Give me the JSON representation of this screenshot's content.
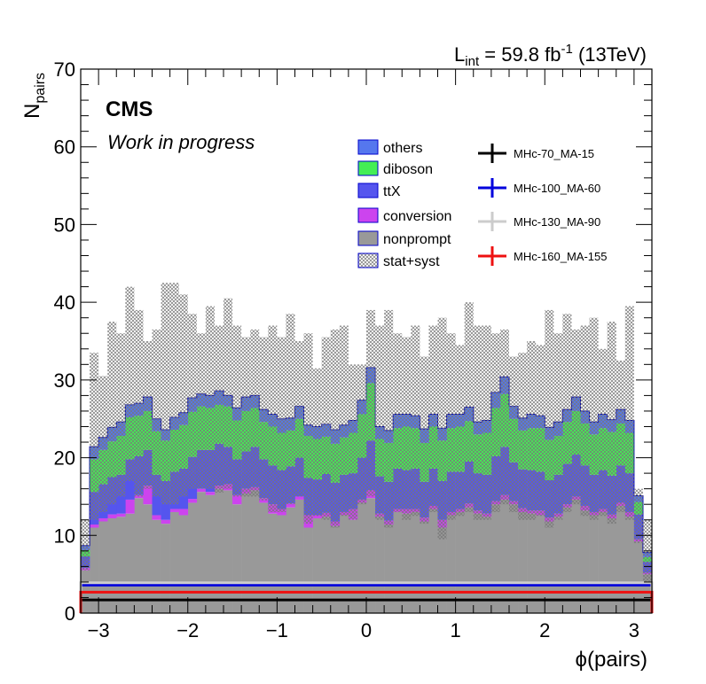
{
  "chart_data": {
    "type": "bar",
    "stacked": true,
    "annotations": {
      "experiment": "CMS",
      "status": "Work in progress",
      "lumi_prefix": "L",
      "lumi_sub": "int",
      "lumi_value": " = 59.8 fb",
      "lumi_sup": "-1",
      "energy": " (13TeV)"
    },
    "xlabel": "ϕ(pairs)",
    "ylabel_main": "N",
    "ylabel_sub": "pairs",
    "xlim": [
      -3.2,
      3.2
    ],
    "ylim": [
      0,
      70
    ],
    "x_ticks": [
      -3,
      -2,
      -1,
      0,
      1,
      2,
      3
    ],
    "x_tick_labels": [
      "−3",
      "−2",
      "−1",
      "0",
      "1",
      "2",
      "3"
    ],
    "y_ticks": [
      0,
      10,
      20,
      30,
      40,
      50,
      60,
      70
    ],
    "y_tick_labels": [
      "0",
      "10",
      "20",
      "30",
      "40",
      "50",
      "60",
      "70"
    ],
    "bin_edges_start": -3.2,
    "bin_width": 0.1,
    "n_bins": 64,
    "legend_position": "top-right",
    "series": [
      {
        "name": "nonprompt",
        "color": "#999999",
        "values": [
          5.5,
          11.0,
          11.8,
          12.2,
          12.4,
          12.8,
          14.8,
          14.0,
          12.0,
          11.5,
          13.0,
          12.6,
          14.2,
          15.6,
          15.2,
          16.0,
          15.8,
          14.0,
          15.4,
          15.8,
          14.2,
          12.8,
          12.6,
          13.6,
          14.6,
          11.0,
          12.2,
          12.4,
          11.2,
          12.6,
          12.0,
          14.2,
          14.8,
          12.4,
          11.4,
          13.0,
          12.8,
          13.0,
          11.8,
          13.4,
          11.0,
          12.6,
          13.0,
          13.6,
          12.8,
          12.4,
          14.0,
          14.6,
          14.0,
          13.0,
          12.8,
          12.6,
          11.8,
          12.4,
          13.6,
          14.6,
          13.2,
          12.6,
          13.0,
          12.2,
          13.8,
          12.4,
          9.2,
          5.0
        ]
      },
      {
        "name": "conversion",
        "color": "#cc44ee",
        "values": [
          0.3,
          0.4,
          0.4,
          0.5,
          0.4,
          1.8,
          0.4,
          2.4,
          0.6,
          0.5,
          0.4,
          0.8,
          0.5,
          0.4,
          0.4,
          0.4,
          0.8,
          1.2,
          0.6,
          0.4,
          0.6,
          1.2,
          0.8,
          0.5,
          0.4,
          1.6,
          0.4,
          0.5,
          0.6,
          0.4,
          1.4,
          0.4,
          1.0,
          0.4,
          0.5,
          0.4,
          0.6,
          0.4,
          0.5,
          0.4,
          1.0,
          0.4,
          0.4,
          0.5,
          0.4,
          0.4,
          0.4,
          0.6,
          0.4,
          0.5,
          0.4,
          0.6,
          0.5,
          0.4,
          0.4,
          0.4,
          0.6,
          0.4,
          0.4,
          0.5,
          0.4,
          0.6,
          0.3,
          0.2
        ]
      },
      {
        "name": "ttX",
        "color": "#5555ee",
        "values": [
          1.5,
          4.2,
          4.4,
          4.8,
          5.0,
          5.2,
          5.0,
          4.6,
          5.2,
          5.0,
          4.8,
          5.2,
          5.4,
          5.0,
          5.4,
          5.4,
          4.8,
          4.6,
          4.8,
          5.2,
          5.0,
          5.0,
          5.0,
          4.8,
          5.0,
          4.8,
          4.6,
          5.0,
          5.0,
          4.8,
          4.6,
          5.4,
          6.4,
          4.8,
          5.0,
          5.2,
          5.0,
          5.2,
          4.6,
          4.8,
          5.0,
          5.2,
          4.8,
          5.4,
          4.8,
          5.0,
          5.8,
          6.2,
          5.0,
          5.0,
          5.2,
          5.0,
          4.8,
          5.0,
          5.2,
          5.4,
          5.2,
          4.8,
          5.0,
          5.0,
          4.8,
          5.0,
          3.2,
          1.4
        ]
      },
      {
        "name": "diboson",
        "color": "#44ee55",
        "values": [
          0.8,
          4.2,
          4.4,
          4.6,
          5.0,
          5.4,
          5.2,
          5.0,
          5.6,
          5.2,
          5.4,
          5.6,
          5.8,
          5.6,
          5.4,
          5.0,
          5.2,
          5.0,
          5.2,
          5.0,
          4.8,
          5.0,
          4.8,
          4.6,
          5.0,
          5.4,
          5.2,
          4.8,
          5.0,
          4.8,
          5.2,
          5.6,
          7.4,
          4.8,
          5.0,
          5.2,
          5.6,
          5.2,
          5.0,
          5.4,
          5.2,
          5.6,
          5.8,
          5.2,
          5.0,
          5.4,
          6.2,
          6.8,
          5.6,
          5.0,
          5.4,
          5.6,
          5.2,
          5.0,
          5.4,
          5.6,
          5.4,
          5.2,
          5.4,
          5.6,
          5.4,
          5.2,
          1.6,
          0.6
        ]
      },
      {
        "name": "others",
        "color": "#5577ee",
        "values": [
          0.6,
          1.6,
          1.6,
          1.8,
          1.8,
          1.6,
          1.6,
          1.8,
          1.6,
          1.4,
          1.6,
          1.6,
          1.8,
          1.6,
          1.6,
          1.8,
          1.4,
          1.6,
          1.8,
          1.6,
          1.6,
          1.6,
          1.8,
          1.6,
          1.6,
          1.4,
          1.6,
          1.6,
          1.8,
          1.6,
          1.6,
          1.8,
          2.0,
          1.6,
          1.6,
          1.8,
          1.6,
          1.6,
          1.8,
          1.6,
          1.6,
          1.8,
          1.6,
          1.8,
          1.6,
          1.6,
          2.0,
          2.2,
          1.6,
          1.6,
          1.8,
          1.6,
          1.6,
          1.8,
          1.6,
          1.8,
          1.6,
          1.6,
          1.8,
          1.6,
          1.8,
          1.6,
          0.8,
          0.6
        ]
      }
    ],
    "uncertainty_band": {
      "name": "stat+syst",
      "fill_pattern": "crosshatch",
      "low": [
        5.5,
        12.0,
        13.0,
        14.0,
        15.0,
        17.0,
        15.0,
        16.0,
        15.0,
        14.0,
        14.0,
        15.0,
        16.0,
        16.0,
        16.0,
        15.5,
        16.0,
        15.0,
        15.0,
        15.0,
        14.5,
        13.0,
        13.0,
        14.0,
        15.0,
        11.5,
        12.5,
        12.0,
        11.0,
        12.5,
        12.0,
        14.0,
        15.0,
        12.0,
        11.0,
        13.0,
        12.0,
        12.5,
        11.5,
        13.0,
        9.5,
        12.0,
        12.5,
        13.0,
        12.0,
        12.0,
        13.0,
        14.0,
        13.0,
        12.0,
        12.0,
        12.5,
        11.0,
        12.0,
        13.0,
        14.0,
        12.5,
        12.0,
        12.5,
        11.5,
        13.0,
        12.0,
        9.0,
        4.0
      ],
      "high": [
        12.0,
        33.5,
        30.5,
        37.5,
        36.0,
        42.0,
        39.0,
        35.0,
        36.5,
        42.5,
        42.5,
        41.0,
        38.5,
        36.0,
        39.5,
        37.0,
        40.5,
        37.0,
        35.5,
        36.5,
        35.5,
        37.0,
        35.5,
        38.5,
        35.0,
        36.0,
        31.5,
        35.5,
        36.5,
        37.0,
        32.0,
        32.0,
        39.0,
        37.0,
        39.0,
        36.0,
        35.5,
        37.0,
        33.0,
        37.0,
        38.0,
        36.0,
        34.5,
        40.0,
        37.0,
        37.0,
        36.0,
        36.5,
        33.0,
        33.5,
        35.0,
        34.5,
        39.0,
        36.0,
        38.5,
        36.5,
        37.0,
        38.0,
        34.0,
        37.5,
        32.5,
        39.5,
        16.0,
        12.0
      ]
    },
    "signals": [
      {
        "name": "MHc-70_MA-15",
        "color": "#000000",
        "level": 1.7
      },
      {
        "name": "MHc-100_MA-60",
        "color": "#0000dd",
        "level": 3.6
      },
      {
        "name": "MHc-130_MA-90",
        "color": "#cccccc",
        "level": 3.9
      },
      {
        "name": "MHc-160_MA-155",
        "color": "#ee1111",
        "level": 2.7
      }
    ],
    "legend_order_stack": [
      "others",
      "diboson",
      "ttX",
      "conversion",
      "nonprompt",
      "stat+syst"
    ]
  }
}
